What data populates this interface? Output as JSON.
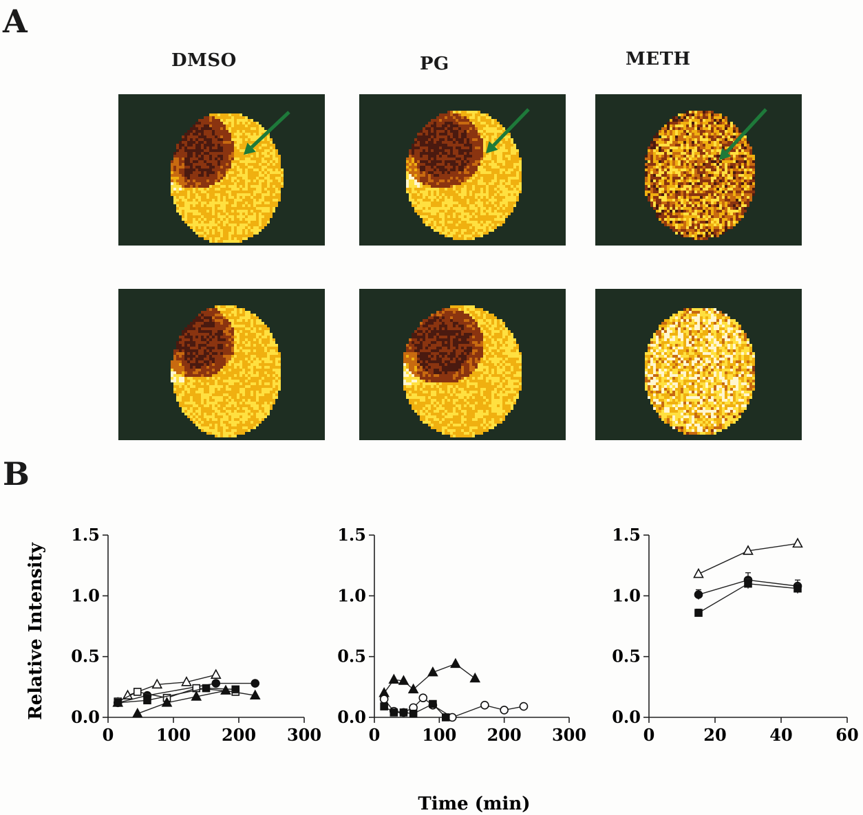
{
  "figure": {
    "panel_a_letter": "A",
    "panel_b_letter": "B",
    "columns": [
      "DMSO",
      "PG",
      "METH"
    ],
    "arrow_color": "#1e7a3a",
    "colormap": [
      "#1e2e22",
      "#4a1a10",
      "#8a3410",
      "#c86a10",
      "#f0b010",
      "#ffe040",
      "#fff6d0"
    ],
    "y_axis_label": "Relative Intensity",
    "x_axis_label": "Time (min)"
  },
  "chart_data": [
    {
      "type": "line",
      "x_ticks": [
        "0",
        "100",
        "200",
        "300"
      ],
      "y_ticks": [
        "0.0",
        "0.5",
        "1.0",
        "1.5"
      ],
      "xlim": [
        0,
        300
      ],
      "ylim": [
        0,
        1.5
      ],
      "ylabel": "Relative Intensity",
      "series": [
        {
          "marker": "filled-circle",
          "x": [
            15,
            60,
            165,
            225
          ],
          "y": [
            0.12,
            0.18,
            0.28,
            0.28
          ]
        },
        {
          "marker": "open-triangle",
          "x": [
            15,
            30,
            75,
            120,
            165
          ],
          "y": [
            0.12,
            0.18,
            0.27,
            0.29,
            0.35
          ]
        },
        {
          "marker": "open-square",
          "x": [
            15,
            45,
            90,
            135,
            195
          ],
          "y": [
            0.13,
            0.21,
            0.16,
            0.24,
            0.21
          ]
        },
        {
          "marker": "filled-square",
          "x": [
            15,
            60,
            150,
            195
          ],
          "y": [
            0.12,
            0.14,
            0.24,
            0.23
          ]
        },
        {
          "marker": "filled-triangle",
          "x": [
            45,
            90,
            135,
            180,
            225
          ],
          "y": [
            0.03,
            0.12,
            0.17,
            0.22,
            0.18
          ]
        }
      ]
    },
    {
      "type": "line",
      "x_ticks": [
        "0",
        "100",
        "200",
        "300"
      ],
      "y_ticks": [
        "0.0",
        "0.5",
        "1.0",
        "1.5"
      ],
      "xlim": [
        0,
        300
      ],
      "ylim": [
        0,
        1.5
      ],
      "series": [
        {
          "marker": "filled-triangle",
          "x": [
            15,
            30,
            45,
            60,
            90,
            125,
            155
          ],
          "y": [
            0.2,
            0.31,
            0.3,
            0.23,
            0.37,
            0.44,
            0.32
          ]
        },
        {
          "marker": "open-circle",
          "x": [
            15,
            30,
            45,
            60,
            75,
            90,
            120,
            170,
            200,
            230
          ],
          "y": [
            0.15,
            0.05,
            0.04,
            0.08,
            0.16,
            0.1,
            0.0,
            0.1,
            0.06,
            0.09
          ]
        },
        {
          "marker": "filled-square",
          "x": [
            15,
            30,
            45,
            60,
            90,
            110
          ],
          "y": [
            0.09,
            0.04,
            0.04,
            0.03,
            0.11,
            0.0
          ]
        }
      ]
    },
    {
      "type": "line",
      "x_ticks": [
        "0",
        "20",
        "40",
        "60"
      ],
      "y_ticks": [
        "0.0",
        "0.5",
        "1.0",
        "1.5"
      ],
      "xlim": [
        0,
        60
      ],
      "ylim": [
        0,
        1.5
      ],
      "series": [
        {
          "marker": "open-triangle",
          "x": [
            15,
            30,
            45
          ],
          "y": [
            1.18,
            1.37,
            1.43
          ]
        },
        {
          "marker": "filled-circle",
          "x": [
            15,
            30,
            45
          ],
          "y": [
            1.01,
            1.13,
            1.08
          ],
          "err": [
            0.04,
            0.06,
            0.05
          ]
        },
        {
          "marker": "filled-square",
          "x": [
            15,
            30,
            45
          ],
          "y": [
            0.86,
            1.1,
            1.06
          ],
          "err": [
            0.03,
            0.04,
            0.04
          ]
        }
      ]
    }
  ]
}
